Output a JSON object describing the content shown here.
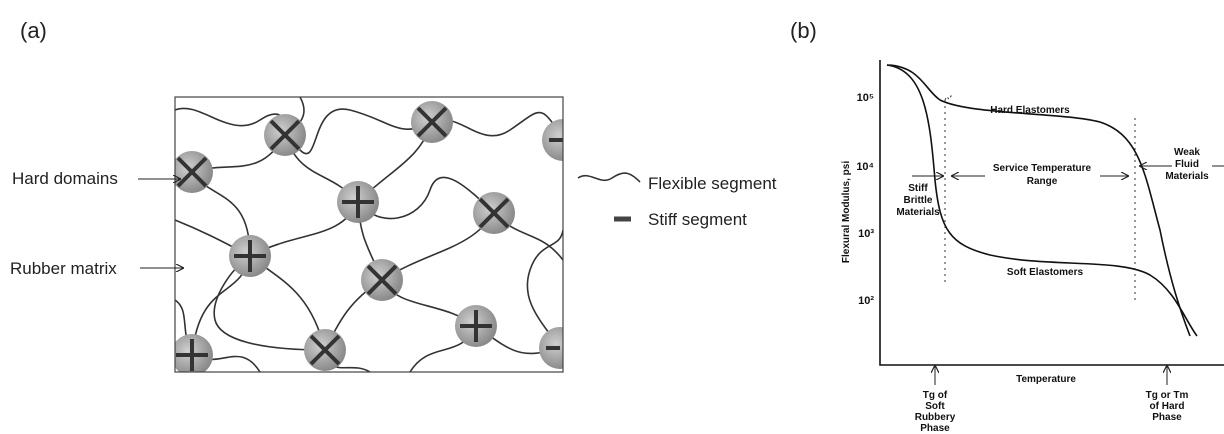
{
  "panel_a": {
    "label": "(a)",
    "callouts": [
      "Hard domains",
      "Rubber matrix"
    ],
    "legend": [
      "Flexible segment",
      "Stiff segment"
    ]
  },
  "panel_b": {
    "label": "(b)",
    "y_axis_label": "Flexural Modulus, psi",
    "x_axis_label": "Temperature",
    "yticks": [
      "10⁵",
      "10⁴",
      "10³",
      "10²"
    ],
    "hard": "Hard Elastomers",
    "soft": "Soft Elastomers",
    "service": [
      "Service Temperature",
      "Range"
    ],
    "stiff": [
      "Stiff",
      "Brittle",
      "Materials"
    ],
    "weak": [
      "Weak",
      "Fluid",
      "Materials"
    ],
    "tg_soft": [
      "Tg of",
      "Soft",
      "Rubbery",
      "Phase"
    ],
    "tg_hard": [
      "Tg or Tm",
      "of Hard",
      "Phase"
    ]
  }
}
